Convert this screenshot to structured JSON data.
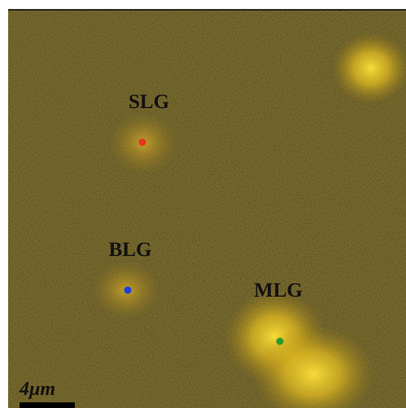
{
  "labels": [
    {
      "text": "SLG",
      "dot_color": "#e8321e"
    },
    {
      "text": "BLG",
      "dot_color": "#1e3ee0"
    },
    {
      "text": "MLG",
      "dot_color": "#2a9a2a"
    }
  ],
  "scale_bar": {
    "label": "4μm"
  }
}
